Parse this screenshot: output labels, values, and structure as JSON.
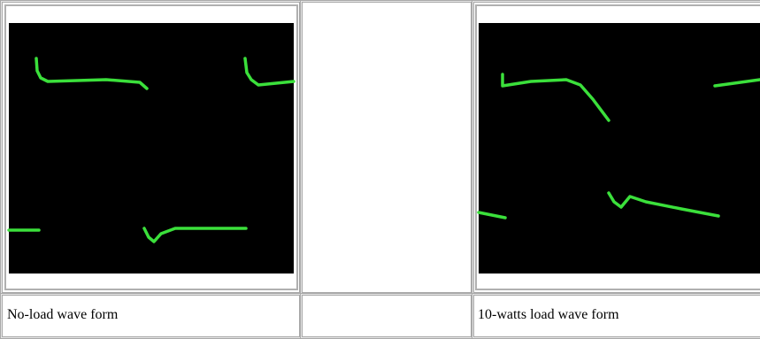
{
  "captions": [
    "No-load wave form",
    "10-watts load wave form"
  ]
}
